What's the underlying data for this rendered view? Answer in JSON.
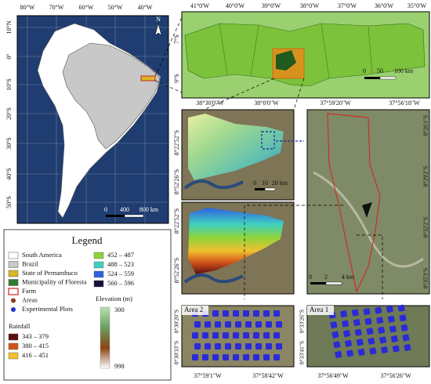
{
  "south_america_map": {
    "north_label": "N",
    "lat_labels": [
      "10°N",
      "0°",
      "10°S",
      "20°S",
      "30°S",
      "40°S",
      "50°S"
    ],
    "lon_labels": [
      "80°W",
      "70°W",
      "60°W",
      "50°W",
      "40°W"
    ],
    "scale": [
      "0",
      "400",
      "800 km"
    ]
  },
  "pernambuco_map": {
    "lon_labels": [
      "41°0'W",
      "40°0'W",
      "39°0'W",
      "38°0'W",
      "37°0'W",
      "36°0'W",
      "35°0'W"
    ],
    "lat_labels": [
      "7°S",
      "9°S"
    ],
    "scale": [
      "0",
      "50",
      "100 km"
    ]
  },
  "elevation_map": {
    "lon_labels": [
      "38°30'0\"W",
      "38°0'0\"W"
    ],
    "lat_labels": [
      "8°22'52\"S",
      "8°52'26\"S"
    ],
    "scale": [
      "0",
      "10",
      "20 km"
    ]
  },
  "rainfall_map": {
    "lat_labels": [
      "8°22'52\"S",
      "8°52'26\"S"
    ]
  },
  "farm_map": {
    "lon_labels": [
      "37°59'20\"W",
      "37°56'18\"W"
    ],
    "lat_labels": [
      "8°26'1\"S",
      "8°29'2\"S",
      "8°32'2\"S",
      "8°35'3\"S"
    ],
    "scale": [
      "0",
      "2",
      "4 km"
    ]
  },
  "area_2": {
    "title": "Area 2",
    "lat_labels": [
      "8°30'20\"S",
      "8°30'33\"S"
    ],
    "lon_labels": [
      "37°59'1\"W",
      "37°58'42\"W"
    ]
  },
  "area_1": {
    "title": "Area 1",
    "lat_labels": [
      "8°33'26\"S",
      "8°33'41\"S"
    ],
    "lon_labels": [
      "37°56'49\"W",
      "37°56'26\"W"
    ]
  },
  "legend": {
    "title": "Legend",
    "items": [
      {
        "label": "South America",
        "color": "#ffffff"
      },
      {
        "label": "Brazil",
        "color": "#c8c8c8"
      },
      {
        "label": "State of Pernambuco",
        "color": "#d9b52a"
      },
      {
        "label": "Municipality of Floresta",
        "color": "#2e7d32"
      },
      {
        "label": "Farm",
        "color": "#d62020"
      },
      {
        "label": "Areas",
        "color": "#8b3a1a"
      },
      {
        "label": "Experimental Plots",
        "color": "#2233cc"
      }
    ],
    "rainfall": {
      "title": "Rainfall",
      "classes": [
        {
          "label": "343 – 379",
          "color": "#5a0f0f"
        },
        {
          "label": "380 – 415",
          "color": "#d2541a"
        },
        {
          "label": "416 – 451",
          "color": "#f0c030"
        },
        {
          "label": "452 – 487",
          "color": "#8ed43a"
        },
        {
          "label": "488 – 523",
          "color": "#40d0c0"
        },
        {
          "label": "524 – 559",
          "color": "#3060e0"
        },
        {
          "label": "560 – 596",
          "color": "#1a1040"
        }
      ]
    },
    "elevation": {
      "title": "Elevation (m)",
      "top": 300,
      "bottom": 998,
      "colors": [
        "#b8e0b0",
        "#6aa060",
        "#8b4513",
        "#ffffff"
      ]
    }
  }
}
